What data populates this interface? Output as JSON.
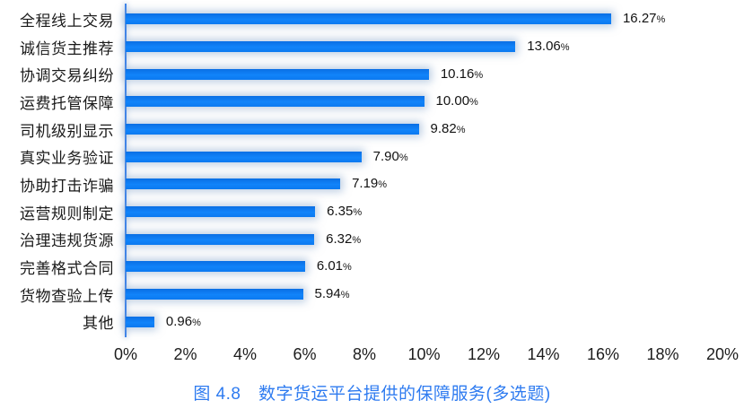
{
  "chart_data": {
    "type": "bar",
    "orientation": "horizontal",
    "title": "图 4.8　数字货运平台提供的保障服务(多选题)",
    "categories": [
      "全程线上交易",
      "诚信货主推荐",
      "协调交易纠纷",
      "运费托管保障",
      "司机级别显示",
      "真实业务验证",
      "协助打击诈骗",
      "运营规则制定",
      "治理违规货源",
      "完善格式合同",
      "货物查验上传",
      "其他"
    ],
    "values": [
      16.27,
      13.06,
      10.16,
      10.0,
      9.82,
      7.9,
      7.19,
      6.35,
      6.32,
      6.01,
      5.94,
      0.96
    ],
    "value_labels": [
      "16.27",
      "13.06",
      "10.16",
      "10.00",
      "9.82",
      "7.90",
      "7.19",
      "6.35",
      "6.32",
      "6.01",
      "5.94",
      "0.96"
    ],
    "value_unit": "%",
    "xlabel": "",
    "ylabel": "",
    "xlim": [
      0,
      20
    ],
    "x_ticks": [
      "0%",
      "2%",
      "4%",
      "6%",
      "8%",
      "10%",
      "12%",
      "14%",
      "16%",
      "18%",
      "20%"
    ],
    "grid": "off",
    "legend": "none",
    "colors": {
      "bar": "#0b7bf3",
      "bar_glow": "#d9e3ee",
      "axis_line": "#3e84ea",
      "title": "#2e7bf0",
      "text": "#1a1a1a"
    }
  }
}
